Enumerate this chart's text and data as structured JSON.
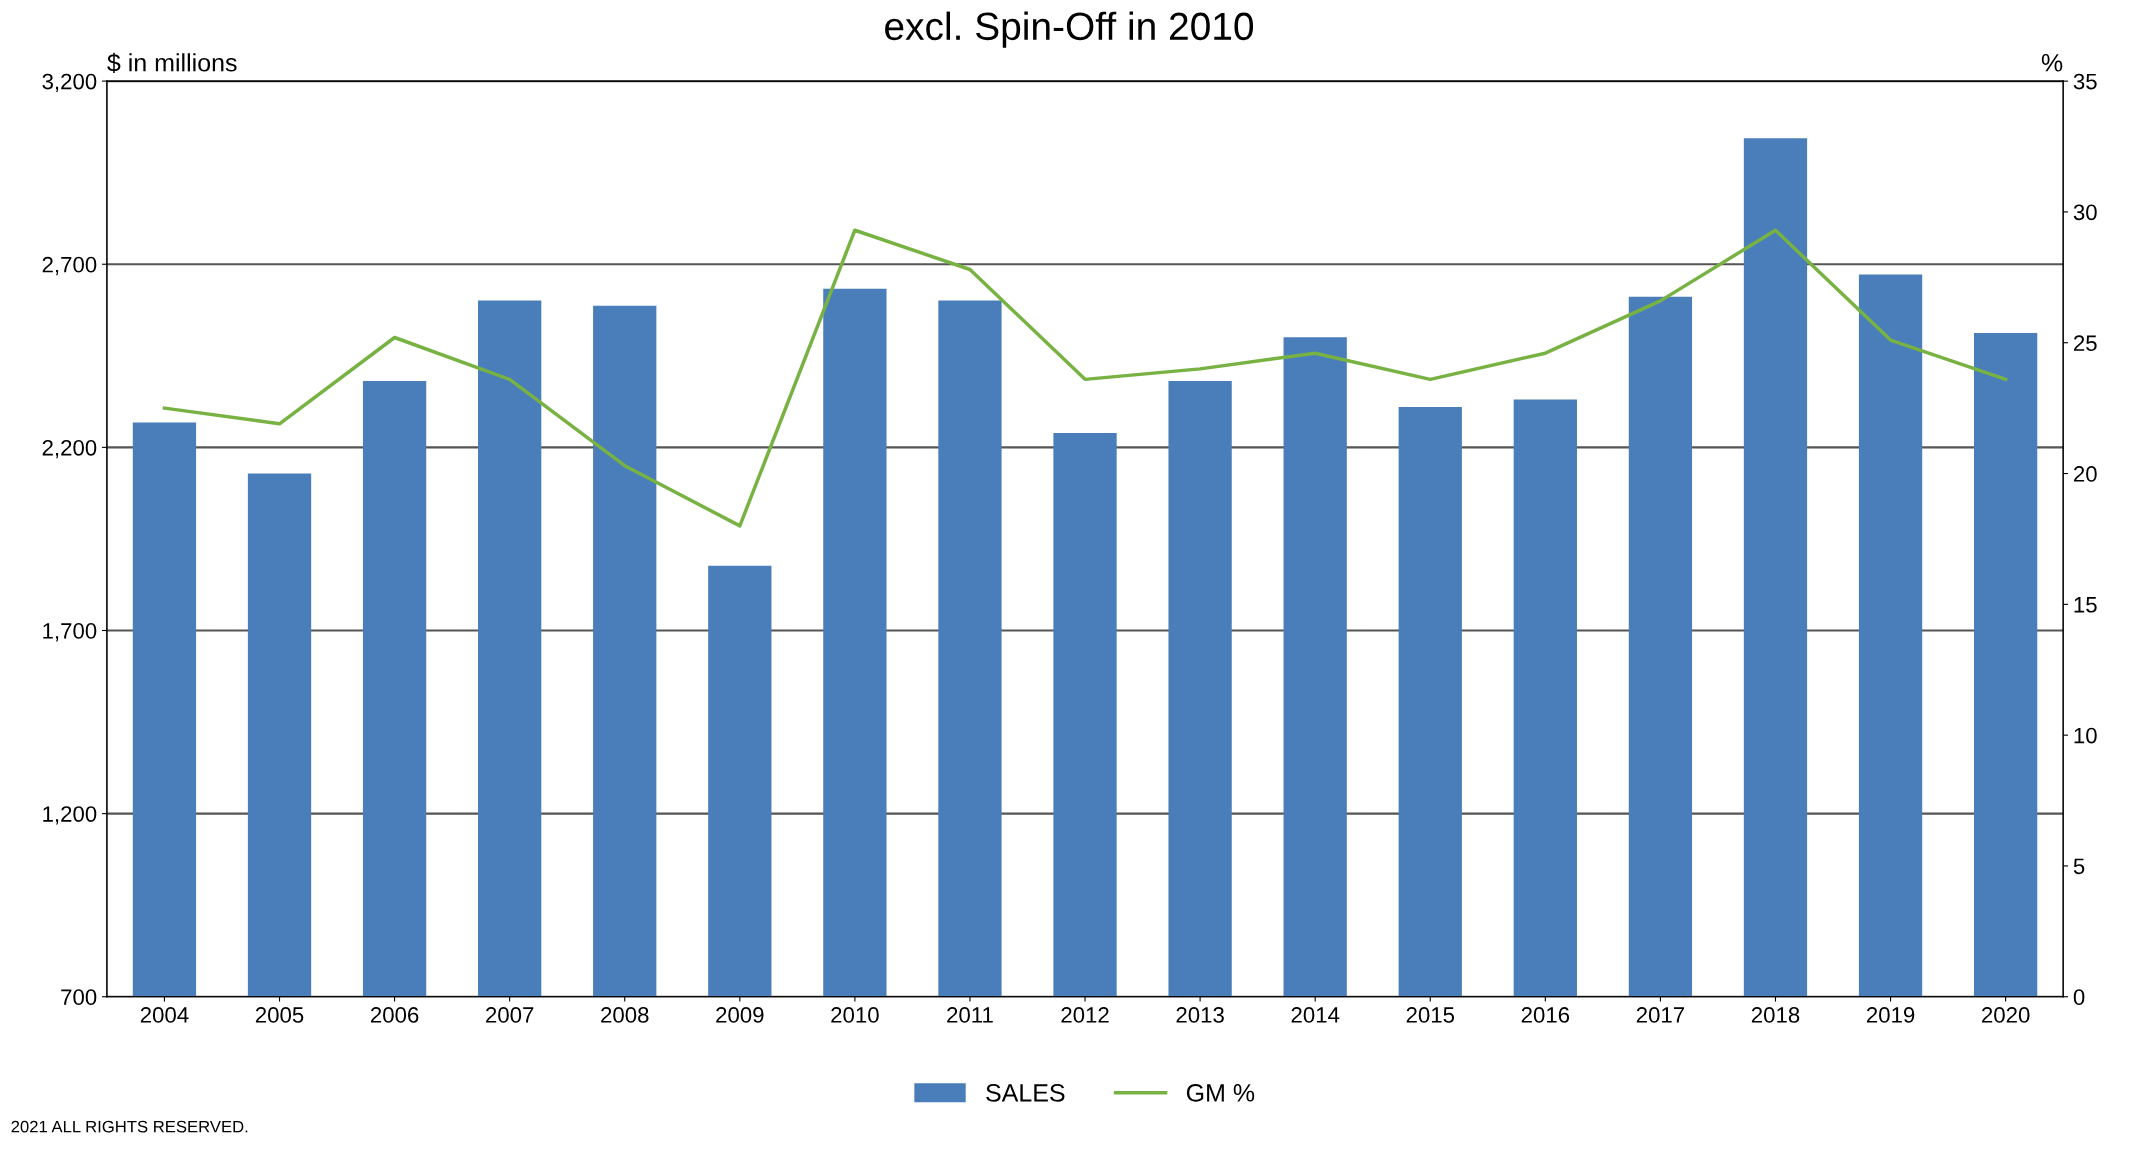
{
  "chart_data": {
    "type": "bar",
    "title": "excl. Spin-Off in 2010",
    "categories": [
      "2004",
      "2005",
      "2006",
      "2007",
      "2008",
      "2009",
      "2010",
      "2011",
      "2012",
      "2013",
      "2014",
      "2015",
      "2016",
      "2017",
      "2018",
      "2019",
      "2020"
    ],
    "series": [
      {
        "name": "SALES",
        "color": "#4a7ebb",
        "values": [
          2268,
          2129,
          2381,
          2601,
          2587,
          1877,
          2633,
          2601,
          2239,
          2381,
          2501,
          2310,
          2331,
          2611,
          3044,
          2672,
          2512
        ]
      },
      {
        "name": "GM %",
        "type": "line",
        "axis": "y2",
        "color": "#77b243",
        "values": [
          22.5,
          21.9,
          25.2,
          23.6,
          20.3,
          18.0,
          29.3,
          27.8,
          23.6,
          24.0,
          24.6,
          23.6,
          24.6,
          26.6,
          29.3,
          25.1,
          23.6
        ]
      }
    ],
    "ylabel": "$ in millions",
    "y2label": "%",
    "ylim": [
      700,
      3200
    ],
    "yticks": [
      700,
      {
        "value": 1200,
        "label": "1,200"
      },
      {
        "value": 1700,
        "label": "1,700"
      },
      {
        "value": 2200,
        "label": "2,200"
      },
      {
        "value": 2700,
        "label": "2,700"
      },
      {
        "value": 3200,
        "label": "3,200"
      }
    ],
    "y2lim": [
      0,
      35
    ],
    "y2ticks": [
      0,
      5,
      10,
      15,
      20,
      25,
      30,
      35
    ],
    "grid": "y",
    "legend": "bottom",
    "marker": "none",
    "line_style": "solid",
    "annotations": [
      "2021 ALL RIGHTS RESERVED."
    ]
  }
}
